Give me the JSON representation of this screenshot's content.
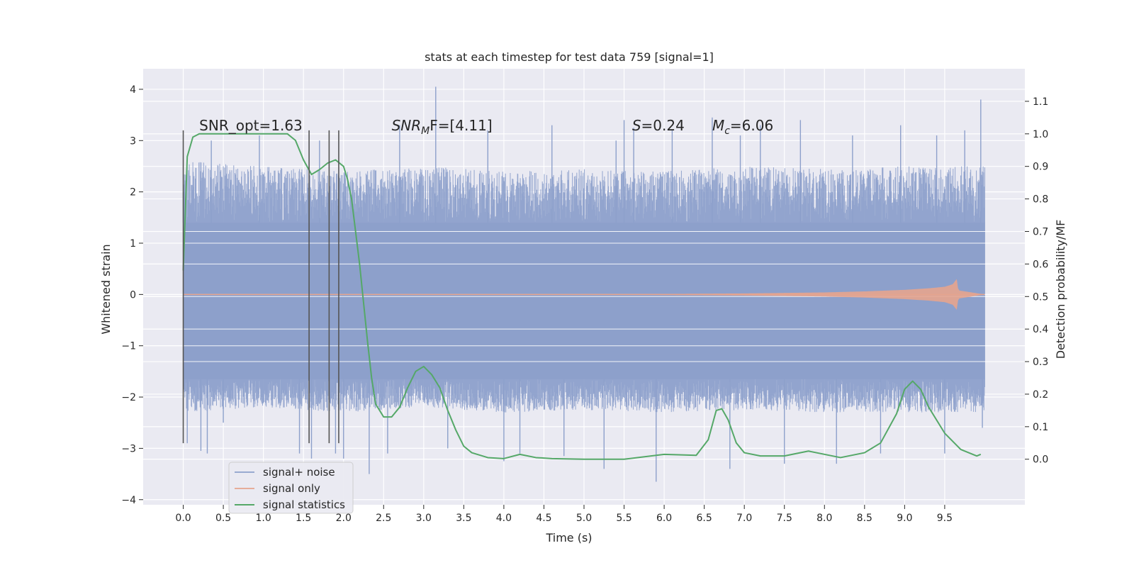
{
  "chart_data": {
    "type": "line",
    "title": "stats at each timestep for test data 759 [signal=1]",
    "xlabel": "Time (s)",
    "ylabel": "Whitened strain",
    "y2label": "Detection probability/MF",
    "xlim": [
      -0.5,
      10.5
    ],
    "ylim": [
      -4.1,
      4.4
    ],
    "y2lim": [
      -0.14,
      1.2
    ],
    "x_ticks": [
      0.0,
      0.5,
      1.0,
      1.5,
      2.0,
      2.5,
      3.0,
      3.5,
      4.0,
      4.5,
      5.0,
      5.5,
      6.0,
      6.5,
      7.0,
      7.5,
      8.0,
      8.5,
      9.0,
      9.5
    ],
    "x_tick_labels": [
      "0.0",
      "0.5",
      "1.0",
      "1.5",
      "2.0",
      "2.5",
      "3.0",
      "3.5",
      "4.0",
      "4.5",
      "5.0",
      "5.5",
      "6.0",
      "6.5",
      "7.0",
      "7.5",
      "8.0",
      "8.5",
      "9.0",
      "9.5"
    ],
    "y_ticks": [
      4,
      3,
      2,
      1,
      0,
      -1,
      -2,
      -3,
      -4
    ],
    "y_tick_labels": [
      "4",
      "3",
      "2",
      "1",
      "0",
      "−1",
      "−2",
      "−3",
      "−4"
    ],
    "y2_ticks": [
      1.1,
      1.0,
      0.9,
      0.8,
      0.7,
      0.6,
      0.5,
      0.4,
      0.3,
      0.2,
      0.1,
      0.0
    ],
    "y2_tick_labels": [
      "1.1",
      "1.0",
      "0.9",
      "0.8",
      "0.7",
      "0.6",
      "0.5",
      "0.4",
      "0.3",
      "0.2",
      "0.1",
      "0.0"
    ],
    "grid": true,
    "legend_position": "lower-left",
    "series": [
      {
        "name": "signal+ noise",
        "color": "#8da0cb",
        "axis": "left",
        "x_range": [
          0.0,
          10.0
        ],
        "core_band": [
          -1.65,
          1.4
        ],
        "envelope": {
          "x": [
            0.0,
            1.0,
            2.0,
            3.0,
            4.0,
            5.0,
            6.0,
            7.0,
            8.0,
            9.0,
            10.0
          ],
          "upper": [
            2.6,
            2.5,
            2.4,
            2.5,
            2.4,
            2.45,
            2.4,
            2.5,
            2.45,
            2.5,
            2.5
          ],
          "lower": [
            -2.3,
            -2.2,
            -2.3,
            -2.2,
            -2.3,
            -2.25,
            -2.3,
            -2.25,
            -2.3,
            -2.3,
            -2.3
          ]
        },
        "spikes": [
          {
            "x": 0.0,
            "y": 2.0
          },
          {
            "x": 0.05,
            "y": -2.9
          },
          {
            "x": 0.22,
            "y": -3.05
          },
          {
            "x": 0.3,
            "y": -3.1
          },
          {
            "x": 0.35,
            "y": 3.0
          },
          {
            "x": 0.5,
            "y": -2.5
          },
          {
            "x": 0.95,
            "y": 3.1
          },
          {
            "x": 1.45,
            "y": -3.1
          },
          {
            "x": 1.6,
            "y": -3.2
          },
          {
            "x": 1.7,
            "y": 3.0
          },
          {
            "x": 1.9,
            "y": -3.1
          },
          {
            "x": 2.0,
            "y": -3.2
          },
          {
            "x": 2.32,
            "y": -3.5
          },
          {
            "x": 2.55,
            "y": -3.1
          },
          {
            "x": 2.7,
            "y": 3.3
          },
          {
            "x": 3.15,
            "y": 4.05
          },
          {
            "x": 3.3,
            "y": -3.0
          },
          {
            "x": 3.8,
            "y": 3.2
          },
          {
            "x": 4.0,
            "y": -3.25
          },
          {
            "x": 4.2,
            "y": -3.1
          },
          {
            "x": 4.6,
            "y": 3.3
          },
          {
            "x": 4.75,
            "y": -3.15
          },
          {
            "x": 5.25,
            "y": -3.4
          },
          {
            "x": 5.4,
            "y": 3.0
          },
          {
            "x": 5.5,
            "y": 3.4
          },
          {
            "x": 5.62,
            "y": 3.25
          },
          {
            "x": 5.9,
            "y": -3.65
          },
          {
            "x": 6.1,
            "y": 3.2
          },
          {
            "x": 6.6,
            "y": 3.45
          },
          {
            "x": 6.82,
            "y": -3.4
          },
          {
            "x": 6.95,
            "y": 3.1
          },
          {
            "x": 7.2,
            "y": 3.3
          },
          {
            "x": 7.5,
            "y": -3.3
          },
          {
            "x": 7.7,
            "y": 3.4
          },
          {
            "x": 8.15,
            "y": -3.3
          },
          {
            "x": 8.35,
            "y": 3.1
          },
          {
            "x": 8.7,
            "y": -3.1
          },
          {
            "x": 8.95,
            "y": 3.3
          },
          {
            "x": 9.4,
            "y": 3.1
          },
          {
            "x": 9.5,
            "y": -3.1
          },
          {
            "x": 9.75,
            "y": 3.2
          },
          {
            "x": 9.95,
            "y": 3.8
          },
          {
            "x": 9.97,
            "y": -2.6
          }
        ]
      },
      {
        "name": "signal only",
        "color": "#e5a48e",
        "axis": "left",
        "x": [
          0.0,
          2.0,
          4.0,
          6.0,
          7.0,
          8.0,
          8.5,
          9.0,
          9.3,
          9.5,
          9.6,
          9.65,
          9.67,
          10.0
        ],
        "amplitude": [
          0.0,
          0.0,
          0.005,
          0.01,
          0.02,
          0.04,
          0.06,
          0.09,
          0.12,
          0.15,
          0.2,
          0.3,
          0.08,
          0.0
        ]
      },
      {
        "name": "signal statistics",
        "color": "#55a868",
        "axis": "right",
        "x": [
          0.0,
          0.05,
          0.12,
          0.2,
          0.4,
          0.6,
          0.8,
          1.0,
          1.2,
          1.3,
          1.4,
          1.5,
          1.6,
          1.7,
          1.8,
          1.9,
          2.0,
          2.05,
          2.1,
          2.15,
          2.2,
          2.25,
          2.3,
          2.35,
          2.4,
          2.5,
          2.6,
          2.7,
          2.8,
          2.9,
          3.0,
          3.1,
          3.2,
          3.3,
          3.4,
          3.5,
          3.6,
          3.8,
          4.0,
          4.2,
          4.4,
          4.6,
          5.0,
          5.5,
          6.0,
          6.4,
          6.55,
          6.65,
          6.72,
          6.8,
          6.9,
          7.0,
          7.2,
          7.5,
          7.8,
          8.2,
          8.5,
          8.7,
          8.9,
          9.0,
          9.1,
          9.2,
          9.3,
          9.5,
          9.7,
          9.9,
          9.95
        ],
        "y": [
          0.58,
          0.93,
          0.99,
          1.0,
          1.0,
          1.0,
          1.0,
          1.0,
          1.0,
          1.0,
          0.98,
          0.92,
          0.875,
          0.89,
          0.91,
          0.92,
          0.9,
          0.86,
          0.8,
          0.7,
          0.6,
          0.48,
          0.36,
          0.25,
          0.17,
          0.13,
          0.13,
          0.16,
          0.22,
          0.27,
          0.285,
          0.26,
          0.22,
          0.15,
          0.09,
          0.04,
          0.02,
          0.005,
          0.002,
          0.015,
          0.005,
          0.002,
          0.0,
          0.0,
          0.015,
          0.012,
          0.06,
          0.15,
          0.155,
          0.12,
          0.05,
          0.02,
          0.01,
          0.01,
          0.025,
          0.005,
          0.02,
          0.05,
          0.14,
          0.215,
          0.24,
          0.215,
          0.16,
          0.08,
          0.03,
          0.01,
          0.015
        ]
      }
    ],
    "vertical_lines": [
      {
        "x": 0.0,
        "y_range": [
          -2.9,
          3.2
        ]
      },
      {
        "x": 1.57,
        "y_range": [
          -2.9,
          3.2
        ]
      },
      {
        "x": 1.82,
        "y_range": [
          -2.9,
          3.2
        ]
      },
      {
        "x": 1.94,
        "y_range": [
          -2.9,
          3.2
        ]
      }
    ],
    "annotations": [
      {
        "x": 0.2,
        "y": 3.2,
        "base": "SNR_opt=1.63",
        "sub": "",
        "rest": ""
      },
      {
        "x": 2.6,
        "y": 3.2,
        "base": "SNR",
        "sub": "M",
        "rest": "F=[4.11]"
      },
      {
        "x": 5.6,
        "y": 3.2,
        "base": "S",
        "sub": "",
        "rest": "=0.24"
      },
      {
        "x": 6.6,
        "y": 3.2,
        "base": "M",
        "sub": "c",
        "rest": "=6.06"
      }
    ]
  }
}
